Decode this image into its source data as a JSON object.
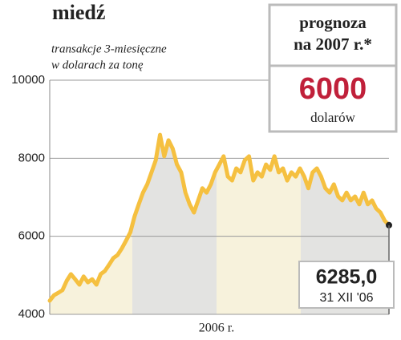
{
  "chart_data": {
    "type": "line",
    "title": "miedź",
    "subtitle": [
      "transakcje 3-miesięczne",
      "w dolarach za tonę"
    ],
    "xlabel": "2006 r.",
    "values": [
      4350,
      4490,
      4550,
      4620,
      4860,
      5030,
      4900,
      4760,
      4970,
      4820,
      4900,
      4760,
      5030,
      5110,
      5270,
      5440,
      5520,
      5690,
      5890,
      6100,
      6510,
      6820,
      7120,
      7330,
      7640,
      7950,
      8600,
      8050,
      8460,
      8250,
      7840,
      7640,
      7120,
      6820,
      6610,
      6920,
      7230,
      7120,
      7330,
      7640,
      7840,
      8050,
      7530,
      7430,
      7740,
      7640,
      7950,
      8050,
      7430,
      7640,
      7530,
      7840,
      7700,
      8050,
      7640,
      7740,
      7430,
      7640,
      7530,
      7740,
      7530,
      7230,
      7640,
      7740,
      7530,
      7230,
      7120,
      7330,
      7020,
      6920,
      7120,
      6920,
      7020,
      6820,
      7120,
      6820,
      6920,
      6710,
      6610,
      6400,
      6285
    ],
    "color": "#f5c040",
    "ylim": [
      4000,
      10000
    ],
    "yticks": [
      4000,
      6000,
      8000,
      10000
    ],
    "grid": true,
    "last_point": {
      "label": "6285,0",
      "date": "31 XII '06"
    },
    "forecast": {
      "title": [
        "prognoza",
        "na 2007 r.*"
      ],
      "value": "6000",
      "unit": "dolarów"
    }
  }
}
